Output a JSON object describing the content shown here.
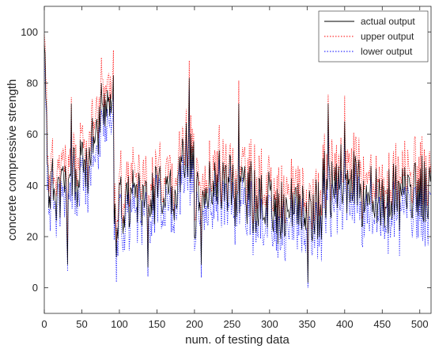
{
  "chart_data": {
    "type": "line",
    "title": "",
    "xlabel": "num. of testing data",
    "ylabel": "concrete compressive strength",
    "xlim": [
      0,
      515
    ],
    "ylim": [
      -10,
      110
    ],
    "xticks": [
      0,
      50,
      100,
      150,
      200,
      250,
      300,
      350,
      400,
      450,
      500
    ],
    "yticks": [
      0,
      20,
      40,
      60,
      80,
      100
    ],
    "grid": false,
    "legend_position": "top-right",
    "segments": [
      {
        "n": [
          0,
          5
        ],
        "range": [
          95,
          40
        ],
        "amp": 10,
        "seed": 3
      },
      {
        "n": [
          5,
          30
        ],
        "range": [
          40,
          38
        ],
        "amp": 12,
        "seed": 11
      },
      {
        "n": [
          30,
          60
        ],
        "range": [
          38,
          50
        ],
        "amp": 12,
        "seed": 21
      },
      {
        "n": [
          60,
          92
        ],
        "range": [
          55,
          75
        ],
        "amp": 8,
        "seed": 31
      },
      {
        "n": [
          92,
          96
        ],
        "range": [
          30,
          30
        ],
        "amp": 8,
        "seed": 41
      },
      {
        "n": [
          96,
          180
        ],
        "range": [
          30,
          40
        ],
        "amp": 11,
        "seed": 51
      },
      {
        "n": [
          180,
          200
        ],
        "range": [
          45,
          50
        ],
        "amp": 14,
        "seed": 61
      },
      {
        "n": [
          200,
          250
        ],
        "range": [
          35,
          45
        ],
        "amp": 12,
        "seed": 71
      },
      {
        "n": [
          250,
          300
        ],
        "range": [
          40,
          32
        ],
        "amp": 12,
        "seed": 81
      },
      {
        "n": [
          300,
          370
        ],
        "range": [
          30,
          28
        ],
        "amp": 11,
        "seed": 91
      },
      {
        "n": [
          370,
          420
        ],
        "range": [
          40,
          42
        ],
        "amp": 14,
        "seed": 101
      },
      {
        "n": [
          420,
          515
        ],
        "range": [
          32,
          38
        ],
        "amp": 11,
        "seed": 111
      }
    ],
    "peaks": [
      {
        "x": 0,
        "y": 95
      },
      {
        "x": 31,
        "y": 9
      },
      {
        "x": 36,
        "y": 72
      },
      {
        "x": 76,
        "y": 80
      },
      {
        "x": 92,
        "y": 83
      },
      {
        "x": 96,
        "y": 12
      },
      {
        "x": 138,
        "y": 8
      },
      {
        "x": 193,
        "y": 82
      },
      {
        "x": 209,
        "y": 9
      },
      {
        "x": 259,
        "y": 72
      },
      {
        "x": 378,
        "y": 72
      },
      {
        "x": 351,
        "y": 2
      },
      {
        "x": 400,
        "y": 65
      }
    ],
    "band": {
      "upper_offset": 8,
      "lower_offset": 8
    },
    "series": [
      {
        "name": "actual output",
        "color": "#000000",
        "style": "solid"
      },
      {
        "name": "upper output",
        "color": "#ff0000",
        "style": "dotted"
      },
      {
        "name": "lower output",
        "color": "#0000ff",
        "style": "dotted"
      }
    ]
  }
}
